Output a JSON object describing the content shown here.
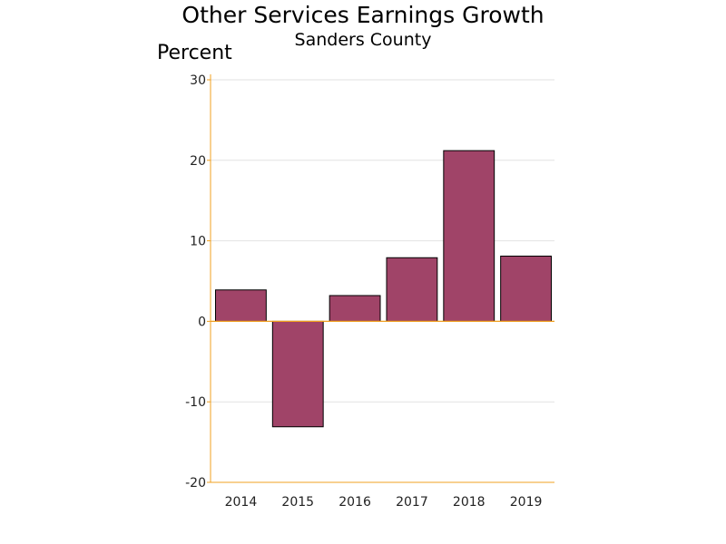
{
  "chart_data": {
    "type": "bar",
    "title": "Other Services Earnings Growth",
    "subtitle": "Sanders County",
    "ylabel": "Percent",
    "xlabel": "",
    "categories": [
      "2014",
      "2015",
      "2016",
      "2017",
      "2018",
      "2019"
    ],
    "values": [
      3.9,
      -13.1,
      3.2,
      7.9,
      21.2,
      8.1
    ],
    "ylim": [
      -20,
      30
    ],
    "yticks": [
      -20,
      -10,
      0,
      10,
      20,
      30
    ],
    "grid": true
  },
  "colors": {
    "bar_fill": "#a04468",
    "bar_stroke": "#000000",
    "axis": "#f0a020",
    "grid": "#e2e2e2"
  }
}
